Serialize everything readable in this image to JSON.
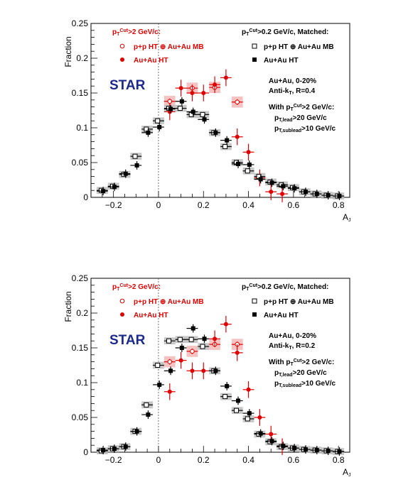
{
  "colors": {
    "red": "#e00000",
    "black": "#000000",
    "star_blue": "#1c2a8c",
    "red_band": "#f4b8b8",
    "gray_band": "#bdbdbd"
  },
  "chart_data": [
    {
      "type": "scatter",
      "xlabel": "A",
      "xlabel_sub": "J",
      "ylabel": "Fraction",
      "xlim": [
        -0.3,
        0.85
      ],
      "ylim": [
        0,
        0.25
      ],
      "xticks": [
        "−0.2",
        "0",
        "0.2",
        "0.4",
        "0.6",
        "0.8"
      ],
      "xtick_values": [
        -0.2,
        0,
        0.2,
        0.4,
        0.6,
        0.8
      ],
      "yticks": [
        "0",
        "0.05",
        "0.1",
        "0.15",
        "0.2",
        "0.25"
      ],
      "ytick_values": [
        0,
        0.05,
        0.1,
        0.15,
        0.2,
        0.25
      ],
      "logo": "STAR",
      "legend_left": {
        "header": {
          "pre": "p",
          "sub": "T",
          "sup": "Cut",
          "post": ">2 GeV/c:"
        },
        "entries": [
          "p+p HT ⊕ Au+Au MB",
          "Au+Au HT"
        ]
      },
      "legend_right": {
        "header": {
          "pre": "p",
          "sub": "T",
          "sup": "Cut",
          "post": ">0.2 GeV/c, Matched:"
        },
        "entries": [
          "p+p HT ⊕ Au+Au MB",
          "Au+Au HT"
        ]
      },
      "info": {
        "centrality": "Au+Au, 0-20%",
        "algo_pre": "Anti-k",
        "algo_sub": "T",
        "algo_post": ", R=0.4",
        "with_pre": "With p",
        "with_sub": "T",
        "with_sup": "Cut",
        "with_post": ">2 GeV/c:",
        "lead_pre": "p",
        "lead_sub": "T,lead",
        "lead_post": ">20 GeV/c",
        "sublead_pre": "p",
        "sublead_sub": "T,sublead",
        "sublead_post": ">10 GeV/c"
      },
      "series": [
        {
          "name": "p+p HT ⊕ Au+Au MB",
          "group": "pT>2",
          "marker": "open-circle",
          "color": "red",
          "x": [
            0.05,
            0.15,
            0.25,
            0.35
          ],
          "y": [
            0.138,
            0.157,
            0.158,
            0.137
          ]
        },
        {
          "name": "Au+Au HT",
          "group": "pT>2",
          "marker": "filled-circle",
          "color": "red",
          "x": [
            0.05,
            0.1,
            0.15,
            0.2,
            0.25,
            0.3,
            0.35,
            0.4,
            0.45,
            0.5,
            0.55
          ],
          "y": [
            0.123,
            0.157,
            0.15,
            0.15,
            0.162,
            0.172,
            0.087,
            0.065,
            0.028,
            0.008,
            0.005
          ]
        },
        {
          "name": "p+p HT ⊕ Au+Au MB",
          "group": "pT>0.2",
          "marker": "open-square",
          "color": "black",
          "x": [
            -0.25,
            -0.2,
            -0.15,
            -0.1,
            -0.05,
            0.0,
            0.05,
            0.1,
            0.15,
            0.2,
            0.25,
            0.3,
            0.35,
            0.4,
            0.45,
            0.5,
            0.55,
            0.6,
            0.65,
            0.7,
            0.75,
            0.8
          ],
          "y": [
            0.01,
            0.016,
            0.033,
            0.059,
            0.098,
            0.11,
            0.128,
            0.128,
            0.119,
            0.119,
            0.093,
            0.073,
            0.05,
            0.038,
            0.03,
            0.022,
            0.018,
            0.014,
            0.008,
            0.005,
            0.003,
            0.002
          ]
        },
        {
          "name": "Au+Au HT",
          "group": "pT>0.2",
          "marker": "filled-square",
          "color": "black",
          "x": [
            -0.25,
            -0.2,
            -0.15,
            -0.1,
            -0.05,
            0.0,
            0.05,
            0.1,
            0.15,
            0.2,
            0.25,
            0.3,
            0.35,
            0.4,
            0.45,
            0.5,
            0.55,
            0.6,
            0.65,
            0.7,
            0.75,
            0.8
          ],
          "y": [
            0.009,
            0.015,
            0.034,
            0.046,
            0.093,
            0.101,
            0.127,
            0.138,
            0.123,
            0.112,
            0.093,
            0.082,
            0.048,
            0.047,
            0.026,
            0.021,
            0.016,
            0.013,
            0.008,
            0.005,
            0.003,
            0.002
          ]
        }
      ]
    },
    {
      "type": "scatter",
      "xlabel": "A",
      "xlabel_sub": "J",
      "ylabel": "Fraction",
      "xlim": [
        -0.3,
        0.85
      ],
      "ylim": [
        0,
        0.25
      ],
      "xticks": [
        "−0.2",
        "0",
        "0.2",
        "0.4",
        "0.6",
        "0.8"
      ],
      "xtick_values": [
        -0.2,
        0,
        0.2,
        0.4,
        0.6,
        0.8
      ],
      "yticks": [
        "0",
        "0.05",
        "0.1",
        "0.15",
        "0.2",
        "0.25"
      ],
      "ytick_values": [
        0,
        0.05,
        0.1,
        0.15,
        0.2,
        0.25
      ],
      "logo": "STAR",
      "legend_left": {
        "header": {
          "pre": "p",
          "sub": "T",
          "sup": "Cut",
          "post": ">2 GeV/c:"
        },
        "entries": [
          "p+p HT ⊕ Au+Au MB",
          "Au+Au HT"
        ]
      },
      "legend_right": {
        "header": {
          "pre": "p",
          "sub": "T",
          "sup": "Cut",
          "post": ">0.2 GeV/c, Matched:"
        },
        "entries": [
          "p+p HT ⊕ Au+Au MB",
          "Au+Au HT"
        ]
      },
      "info": {
        "centrality": "Au+Au, 0-20%",
        "algo_pre": "Anti-k",
        "algo_sub": "T",
        "algo_post": ", R=0.2",
        "with_pre": "With p",
        "with_sub": "T",
        "with_sup": "Cut",
        "with_post": ">2 GeV/c:",
        "lead_pre": "p",
        "lead_sub": "T,lead",
        "lead_post": ">20 GeV/c",
        "sublead_pre": "p",
        "sublead_sub": "T,sublead",
        "sublead_post": ">10 GeV/c"
      },
      "series": [
        {
          "name": "p+p HT ⊕ Au+Au MB",
          "group": "pT>2",
          "marker": "open-circle",
          "color": "red",
          "x": [
            0.05,
            0.15,
            0.25,
            0.35
          ],
          "y": [
            0.13,
            0.145,
            0.155,
            0.155
          ]
        },
        {
          "name": "Au+Au HT",
          "group": "pT>2",
          "marker": "filled-circle",
          "color": "red",
          "x": [
            0.05,
            0.1,
            0.15,
            0.2,
            0.25,
            0.3,
            0.35,
            0.4,
            0.45,
            0.5,
            0.55
          ],
          "y": [
            0.087,
            0.132,
            0.117,
            0.117,
            0.163,
            0.184,
            0.143,
            0.09,
            0.05,
            0.026,
            0.008
          ]
        },
        {
          "name": "p+p HT ⊕ Au+Au MB",
          "group": "pT>0.2",
          "marker": "open-square",
          "color": "black",
          "x": [
            -0.25,
            -0.2,
            -0.15,
            -0.1,
            -0.05,
            0.0,
            0.05,
            0.1,
            0.15,
            0.2,
            0.25,
            0.3,
            0.35,
            0.4,
            0.45,
            0.5,
            0.55,
            0.6,
            0.65,
            0.7,
            0.75,
            0.8
          ],
          "y": [
            0.002,
            0.005,
            0.008,
            0.03,
            0.068,
            0.125,
            0.16,
            0.162,
            0.162,
            0.152,
            0.117,
            0.08,
            0.06,
            0.048,
            0.026,
            0.015,
            0.008,
            0.006,
            0.004,
            0.003,
            0.002,
            0.001
          ]
        },
        {
          "name": "Au+Au HT",
          "group": "pT>0.2",
          "marker": "filled-square",
          "color": "black",
          "x": [
            -0.25,
            -0.2,
            -0.15,
            -0.1,
            -0.05,
            0.0,
            0.05,
            0.1,
            0.15,
            0.2,
            0.25,
            0.3,
            0.35,
            0.4,
            0.45,
            0.5,
            0.55,
            0.6,
            0.65,
            0.7,
            0.75,
            0.8
          ],
          "y": [
            0.003,
            0.005,
            0.008,
            0.03,
            0.054,
            0.097,
            0.117,
            0.15,
            0.178,
            0.163,
            0.117,
            0.095,
            0.074,
            0.056,
            0.027,
            0.016,
            0.009,
            0.006,
            0.004,
            0.003,
            0.002,
            0.001
          ]
        }
      ]
    }
  ]
}
